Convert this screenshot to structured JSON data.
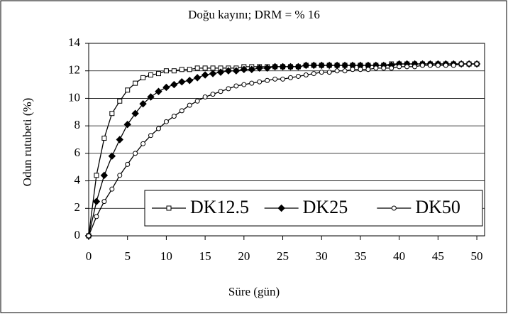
{
  "chart_data": {
    "type": "line",
    "title": "Doğu kayını; DRM = % 16",
    "x_label": "Süre (gün)",
    "y_label": "Odun rutubeti (%)",
    "x": [
      0,
      1,
      2,
      3,
      4,
      5,
      6,
      7,
      8,
      9,
      10,
      11,
      12,
      13,
      14,
      15,
      16,
      17,
      18,
      19,
      20,
      21,
      22,
      23,
      24,
      25,
      26,
      27,
      28,
      29,
      30,
      31,
      32,
      33,
      34,
      35,
      36,
      37,
      38,
      39,
      40,
      41,
      42,
      43,
      44,
      45,
      46,
      47,
      48,
      49,
      50
    ],
    "series": [
      {
        "name": "DK12.5",
        "color": "#000000",
        "marker": "square",
        "values": [
          0,
          4.4,
          7.1,
          8.9,
          9.8,
          10.6,
          11.1,
          11.5,
          11.7,
          11.8,
          12.0,
          12.0,
          12.1,
          12.1,
          12.2,
          12.2,
          12.2,
          12.2,
          12.2,
          12.2,
          12.3,
          12.3,
          12.3,
          12.3,
          12.3,
          12.3,
          12.3,
          12.3,
          12.4,
          12.4,
          12.4,
          12.4,
          12.4,
          12.4,
          12.4,
          12.4,
          12.4,
          12.4,
          12.4,
          12.5,
          12.5,
          12.5,
          12.5,
          12.5,
          12.5,
          12.5,
          12.5,
          12.5,
          12.5,
          12.5,
          12.5
        ]
      },
      {
        "name": "DK25",
        "color": "#000000",
        "marker": "diamond",
        "values": [
          0,
          2.5,
          4.4,
          5.8,
          7.0,
          8.1,
          8.9,
          9.6,
          10.1,
          10.5,
          10.8,
          11.0,
          11.2,
          11.3,
          11.5,
          11.7,
          11.8,
          11.9,
          12.0,
          12.0,
          12.1,
          12.1,
          12.2,
          12.2,
          12.3,
          12.3,
          12.3,
          12.3,
          12.4,
          12.4,
          12.4,
          12.4,
          12.4,
          12.4,
          12.4,
          12.4,
          12.4,
          12.4,
          12.4,
          12.4,
          12.5,
          12.5,
          12.5,
          12.5,
          12.5,
          12.5,
          12.5,
          12.5,
          12.5,
          12.5,
          12.5
        ]
      },
      {
        "name": "DK50",
        "color": "#000000",
        "marker": "circle",
        "values": [
          0,
          1.4,
          2.5,
          3.4,
          4.4,
          5.2,
          6.0,
          6.7,
          7.3,
          7.8,
          8.3,
          8.7,
          9.1,
          9.5,
          9.8,
          10.1,
          10.3,
          10.5,
          10.7,
          10.9,
          11.0,
          11.1,
          11.2,
          11.3,
          11.4,
          11.4,
          11.5,
          11.6,
          11.7,
          11.8,
          11.9,
          11.9,
          12.0,
          12.0,
          12.1,
          12.1,
          12.1,
          12.2,
          12.2,
          12.2,
          12.3,
          12.3,
          12.3,
          12.4,
          12.4,
          12.4,
          12.4,
          12.4,
          12.5,
          12.5,
          12.5
        ]
      }
    ],
    "xlim": [
      0,
      51
    ],
    "xticks": [
      0,
      5,
      10,
      15,
      20,
      25,
      30,
      35,
      40,
      45,
      50
    ],
    "ylim": [
      0,
      14
    ],
    "yticks": [
      0,
      2,
      4,
      6,
      8,
      10,
      12,
      14
    ],
    "grid": true,
    "legend": "bottom-right"
  }
}
